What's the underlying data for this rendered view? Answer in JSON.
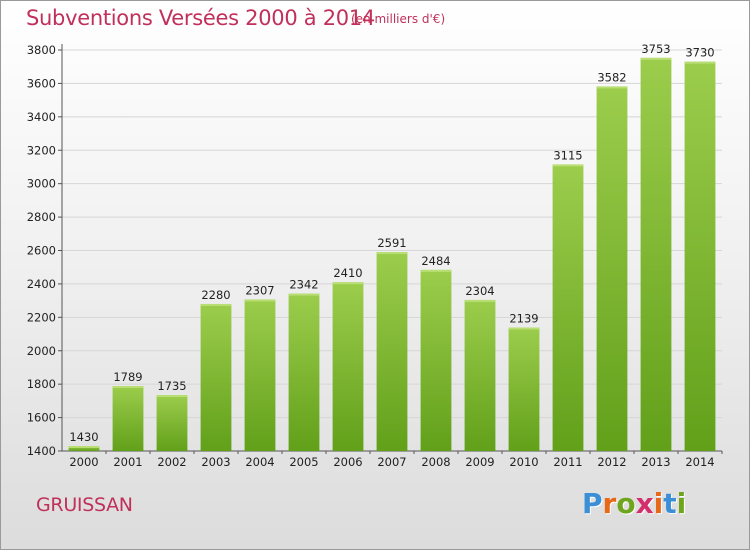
{
  "header": {
    "title": "Subventions Versées 2000 à 2014",
    "unit": "(en milliers d'€)"
  },
  "footer": {
    "commune": "GRUISSAN",
    "logo_text": "Proxiti",
    "logo_colors": [
      "#3b8fd6",
      "#e8681a",
      "#6fa51c",
      "#d42f6c",
      "#e8681a",
      "#3b8fd6",
      "#6fa51c"
    ]
  },
  "colors": {
    "bar_light": "#9ccd4c",
    "bar_dark": "#62a01a",
    "accent": "#c0305a"
  },
  "chart_data": {
    "type": "bar",
    "title": "Subventions Versées 2000 à 2014",
    "subtitle": "(en milliers d'€)",
    "categories": [
      "2000",
      "2001",
      "2002",
      "2003",
      "2004",
      "2005",
      "2006",
      "2007",
      "2008",
      "2009",
      "2010",
      "2011",
      "2012",
      "2013",
      "2014"
    ],
    "values": [
      1430,
      1789,
      1735,
      2280,
      2307,
      2342,
      2410,
      2591,
      2484,
      2304,
      2139,
      3115,
      3582,
      3753,
      3730
    ],
    "data_labels": [
      "1430",
      "1789",
      "1735",
      "2280",
      "2307",
      "2342",
      "2410",
      "2591",
      "2484",
      "2304",
      "2139",
      "3115",
      "3582",
      "3753",
      "3730"
    ],
    "y_ticks": [
      "1400",
      "1600",
      "1800",
      "2000",
      "2200",
      "2400",
      "2600",
      "2800",
      "3000",
      "3200",
      "3400",
      "3600",
      "3800"
    ],
    "ylim": [
      1400,
      3800
    ],
    "grid": true,
    "xlabel": "",
    "ylabel": ""
  }
}
